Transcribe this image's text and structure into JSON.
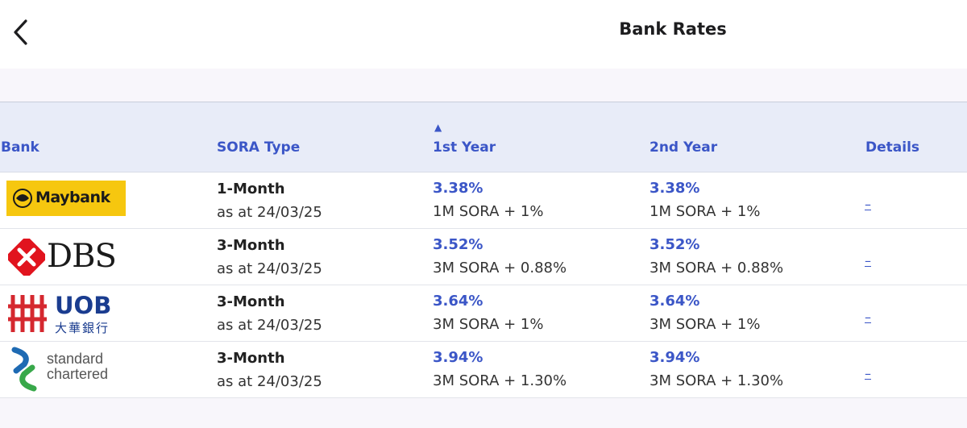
{
  "header": {
    "title": "Bank Rates",
    "back_icon": "chevron-left-icon"
  },
  "table": {
    "columns": {
      "bank": "Bank",
      "sora_type": "SORA Type",
      "first_year": "1st Year",
      "second_year": "2nd Year",
      "details": "Details",
      "sort_indicator": "▲"
    },
    "rows": [
      {
        "bank": "Maybank",
        "logo_text": "Maybank",
        "sora_type": "1-Month",
        "as_at": "as at 24/03/25",
        "first_year_rate": "3.38%",
        "first_year_desc": "1M SORA + 1%",
        "second_year_rate": "3.38%",
        "second_year_desc": "1M SORA + 1%",
        "details": "–"
      },
      {
        "bank": "DBS",
        "logo_text": "DBS",
        "sora_type": "3-Month",
        "as_at": "as at 24/03/25",
        "first_year_rate": "3.52%",
        "first_year_desc": "3M SORA + 0.88%",
        "second_year_rate": "3.52%",
        "second_year_desc": "3M SORA + 0.88%",
        "details": "–"
      },
      {
        "bank": "UOB",
        "logo_text": "UOB",
        "logo_subtext": "大華銀行",
        "sora_type": "3-Month",
        "as_at": "as at 24/03/25",
        "first_year_rate": "3.64%",
        "first_year_desc": "3M SORA + 1%",
        "second_year_rate": "3.64%",
        "second_year_desc": "3M SORA + 1%",
        "details": "–"
      },
      {
        "bank": "Standard Chartered",
        "logo_text": "standard",
        "logo_subtext": "chartered",
        "sora_type": "3-Month",
        "as_at": "as at 24/03/25",
        "first_year_rate": "3.94%",
        "first_year_desc": "3M SORA + 1.30%",
        "second_year_rate": "3.94%",
        "second_year_desc": "3M SORA + 1.30%",
        "details": "–"
      }
    ]
  },
  "colors": {
    "accent": "#3b56c7",
    "header_bg": "#e8ecf8",
    "maybank_yellow": "#f6c70f",
    "dbs_red": "#e1141e",
    "uob_red": "#d5282f",
    "uob_navy": "#1a3c8f",
    "sc_blue": "#1e6ab3",
    "sc_green": "#38a84a"
  }
}
